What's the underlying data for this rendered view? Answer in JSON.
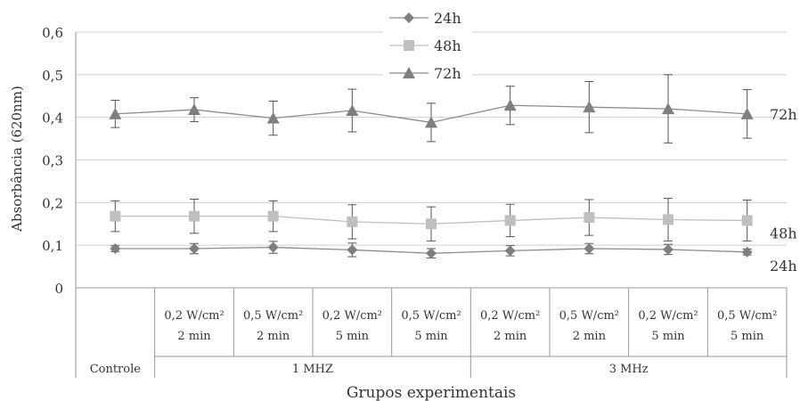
{
  "chart_data": {
    "type": "line",
    "xlabel": "Grupos experimentais",
    "ylabel": "Absorbância (620nm)",
    "ylim": [
      0,
      0.6
    ],
    "y_ticks": [
      "0",
      "0,1",
      "0,2",
      "0,3",
      "0,4",
      "0,5",
      "0,6"
    ],
    "grid": true,
    "legend_position": "top-center",
    "categories": [
      {
        "power": "",
        "time": "",
        "group": "Controle"
      },
      {
        "power": "0,2 W/cm²",
        "time": "2 min",
        "group": "1 MHZ"
      },
      {
        "power": "0,5 W/cm²",
        "time": "2 min",
        "group": "1 MHZ"
      },
      {
        "power": "0,2 W/cm²",
        "time": "5 min",
        "group": "1 MHZ"
      },
      {
        "power": "0,5 W/cm²",
        "time": "5 min",
        "group": "1 MHZ"
      },
      {
        "power": "0,2 W/cm²",
        "time": "2 min",
        "group": "3 MHz"
      },
      {
        "power": "0,5 W/cm²",
        "time": "2 min",
        "group": "3 MHz"
      },
      {
        "power": "0,2 W/cm²",
        "time": "5 min",
        "group": "3 MHz"
      },
      {
        "power": "0,5 W/cm²",
        "time": "5 min",
        "group": "3 MHz"
      }
    ],
    "group_labels": {
      "control": "Controle",
      "g1": "1 MHZ",
      "g3": "3 MHz"
    },
    "series": [
      {
        "name": "24h",
        "end_label": "24h",
        "marker": "diamond",
        "color": "#7f7f7f",
        "values": [
          0.092,
          0.092,
          0.095,
          0.089,
          0.081,
          0.087,
          0.092,
          0.09,
          0.084
        ],
        "errors": [
          0.007,
          0.012,
          0.014,
          0.016,
          0.011,
          0.012,
          0.012,
          0.012,
          0.007
        ]
      },
      {
        "name": "48h",
        "end_label": "48h",
        "marker": "square",
        "color": "#bfbfbf",
        "values": [
          0.168,
          0.168,
          0.168,
          0.155,
          0.15,
          0.158,
          0.165,
          0.16,
          0.158
        ],
        "errors": [
          0.036,
          0.04,
          0.036,
          0.04,
          0.04,
          0.038,
          0.042,
          0.05,
          0.048
        ]
      },
      {
        "name": "72h",
        "end_label": "72h",
        "marker": "triangle",
        "color": "#7f7f7f",
        "values": [
          0.408,
          0.418,
          0.398,
          0.416,
          0.388,
          0.428,
          0.424,
          0.42,
          0.408
        ],
        "errors": [
          0.032,
          0.028,
          0.04,
          0.05,
          0.045,
          0.045,
          0.06,
          0.08,
          0.057
        ]
      }
    ]
  }
}
